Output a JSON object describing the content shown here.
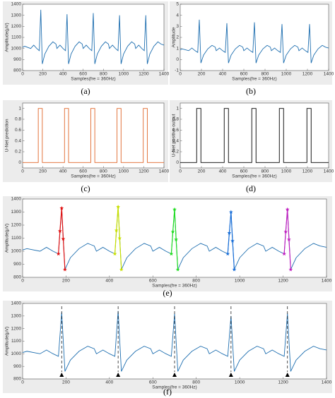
{
  "chart_data": [
    {
      "type": "line",
      "caption": "(a)",
      "xlabel": "Samples(fre = 360Hz)",
      "ylabel": "Amplitude(μV)",
      "xlim": [
        0,
        1400
      ],
      "xticks": [
        0,
        200,
        400,
        600,
        800,
        1000,
        1200,
        1400
      ],
      "ylim": [
        800,
        1400
      ],
      "yticks": [
        800,
        900,
        1000,
        1100,
        1200,
        1300,
        1400
      ],
      "series": [
        {
          "color": "#1f6fb0",
          "x": [
            0,
            20,
            80,
            110,
            140,
            165,
            180,
            195,
            220,
            260,
            300,
            330,
            340,
            370,
            400,
            425,
            440,
            455,
            480,
            520,
            560,
            590,
            600,
            630,
            660,
            685,
            700,
            715,
            740,
            780,
            820,
            850,
            860,
            890,
            920,
            945,
            960,
            975,
            1000,
            1040,
            1080,
            1110,
            1120,
            1150,
            1180,
            1205,
            1220,
            1235,
            1260,
            1300,
            1340,
            1370,
            1400
          ],
          "values": [
            1010,
            1020,
            1000,
            1030,
            1000,
            980,
            1350,
            860,
            950,
            1020,
            1060,
            1040,
            1000,
            1030,
            1000,
            980,
            1310,
            860,
            950,
            1020,
            1060,
            1040,
            1000,
            1030,
            1000,
            980,
            1320,
            860,
            950,
            1020,
            1060,
            1040,
            1000,
            1030,
            1000,
            980,
            1300,
            860,
            950,
            1020,
            1060,
            1040,
            1000,
            1030,
            1000,
            980,
            1300,
            860,
            950,
            1020,
            1060,
            1040,
            1030
          ]
        }
      ]
    },
    {
      "type": "line",
      "caption": "(b)",
      "xlabel": "Samples(fre = 360Hz)",
      "ylabel": "Amplitude",
      "xlim": [
        0,
        1400
      ],
      "xticks": [
        0,
        200,
        400,
        600,
        800,
        1000,
        1200,
        1400
      ],
      "ylim": [
        -1,
        5
      ],
      "yticks": [
        -1,
        0,
        1,
        2,
        3,
        4,
        5
      ],
      "series": [
        {
          "color": "#1f6fb0",
          "x": [
            0,
            20,
            80,
            110,
            140,
            165,
            180,
            195,
            220,
            260,
            300,
            330,
            340,
            370,
            400,
            425,
            440,
            455,
            480,
            520,
            560,
            590,
            600,
            630,
            660,
            685,
            700,
            715,
            740,
            780,
            820,
            850,
            860,
            890,
            920,
            945,
            960,
            975,
            1000,
            1040,
            1080,
            1110,
            1120,
            1150,
            1180,
            1205,
            1220,
            1235,
            1260,
            1300,
            1340,
            1370,
            1400
          ],
          "values": [
            0.88,
            0.96,
            0.8,
            1.04,
            0.8,
            0.64,
            3.6,
            -0.32,
            0.4,
            0.96,
            1.28,
            1.12,
            0.8,
            1.04,
            0.8,
            0.64,
            3.28,
            -0.32,
            0.4,
            0.96,
            1.28,
            1.12,
            0.8,
            1.04,
            0.8,
            0.64,
            3.36,
            -0.32,
            0.4,
            0.96,
            1.28,
            1.12,
            0.8,
            1.04,
            0.8,
            0.64,
            3.2,
            -0.32,
            0.4,
            0.96,
            1.28,
            1.12,
            0.8,
            1.04,
            0.8,
            0.64,
            3.2,
            -0.32,
            0.4,
            0.96,
            1.28,
            1.12,
            1.04
          ]
        }
      ]
    },
    {
      "type": "line",
      "caption": "(c)",
      "xlabel": "Samples(fre = 360Hz)",
      "ylabel": "U-Net prediction",
      "xlim": [
        0,
        1400
      ],
      "xticks": [
        0,
        200,
        400,
        600,
        800,
        1000,
        1200,
        1400
      ],
      "ylim": [
        -0.1,
        1.1
      ],
      "yticks": [
        0,
        0.2,
        0.4,
        0.6,
        0.8,
        1
      ],
      "series": [
        {
          "color": "#e0662a",
          "x": [
            0,
            155,
            155,
            195,
            195,
            415,
            415,
            455,
            455,
            675,
            675,
            715,
            715,
            935,
            935,
            975,
            975,
            1195,
            1195,
            1235,
            1235,
            1400
          ],
          "values": [
            0,
            0,
            1,
            1,
            0,
            0,
            1,
            1,
            0,
            0,
            1,
            1,
            0,
            0,
            1,
            1,
            0,
            0,
            1,
            1,
            0,
            0
          ]
        }
      ]
    },
    {
      "type": "line",
      "caption": "(d)",
      "xlabel": "Samples(fre = 360Hz)",
      "ylabel": "U-Net positive output",
      "xlim": [
        0,
        1400
      ],
      "xticks": [
        0,
        200,
        400,
        600,
        800,
        1000,
        1200,
        1400
      ],
      "ylim": [
        -0.1,
        1.1
      ],
      "yticks": [
        0,
        0.2,
        0.4,
        0.6,
        0.8,
        1
      ],
      "series": [
        {
          "color": "#000000",
          "x": [
            0,
            155,
            155,
            195,
            195,
            415,
            415,
            455,
            455,
            675,
            675,
            715,
            715,
            935,
            935,
            975,
            975,
            1195,
            1195,
            1235,
            1235,
            1400
          ],
          "values": [
            0,
            0,
            1,
            1,
            0,
            0,
            1,
            1,
            0,
            0,
            1,
            1,
            0,
            0,
            1,
            1,
            0,
            0,
            1,
            1,
            0,
            0
          ]
        }
      ]
    },
    {
      "type": "line",
      "caption": "(e)",
      "xlabel": "Samples(fre = 360Hz)",
      "ylabel": "Amplitude(μV)",
      "xlim": [
        0,
        1400
      ],
      "xticks": [
        0,
        200,
        400,
        600,
        800,
        1000,
        1200,
        1400
      ],
      "ylim": [
        800,
        1400
      ],
      "yticks": [
        800,
        900,
        1000,
        1100,
        1200,
        1300,
        1400
      ],
      "series": [
        {
          "color": "#1f6fb0",
          "x": [
            0,
            20,
            80,
            110,
            140,
            165,
            180,
            195,
            220,
            260,
            300,
            330,
            340,
            370,
            400,
            425,
            440,
            455,
            480,
            520,
            560,
            590,
            600,
            630,
            660,
            685,
            700,
            715,
            740,
            780,
            820,
            850,
            860,
            890,
            920,
            945,
            960,
            975,
            1000,
            1040,
            1080,
            1110,
            1120,
            1150,
            1180,
            1205,
            1220,
            1235,
            1260,
            1300,
            1340,
            1370,
            1400
          ],
          "values": [
            1010,
            1020,
            1000,
            1030,
            1000,
            980,
            1330,
            860,
            950,
            1020,
            1060,
            1040,
            1000,
            1030,
            1000,
            980,
            1340,
            860,
            950,
            1020,
            1060,
            1040,
            1000,
            1030,
            1000,
            980,
            1320,
            860,
            950,
            1020,
            1060,
            1040,
            1000,
            1030,
            1000,
            980,
            1300,
            860,
            950,
            1020,
            1060,
            1040,
            1000,
            1030,
            1000,
            980,
            1320,
            860,
            950,
            1020,
            1060,
            1040,
            1030
          ]
        },
        {
          "color": "#e01010",
          "marker": "star",
          "x": [
            165,
            172,
            180,
            187,
            195
          ],
          "values": [
            980,
            1155,
            1330,
            1095,
            860
          ]
        },
        {
          "color": "#c8e000",
          "marker": "star",
          "x": [
            425,
            432,
            440,
            447,
            455
          ],
          "values": [
            980,
            1160,
            1340,
            1100,
            860
          ]
        },
        {
          "color": "#22dd22",
          "marker": "star",
          "x": [
            685,
            692,
            700,
            707,
            715
          ],
          "values": [
            980,
            1150,
            1320,
            1090,
            860
          ]
        },
        {
          "color": "#1a6fd8",
          "marker": "star",
          "x": [
            945,
            952,
            960,
            967,
            975
          ],
          "values": [
            980,
            1140,
            1300,
            1080,
            860
          ]
        },
        {
          "color": "#c020c0",
          "marker": "star",
          "x": [
            1205,
            1212,
            1220,
            1227,
            1235
          ],
          "values": [
            980,
            1150,
            1320,
            1090,
            860
          ]
        }
      ]
    },
    {
      "type": "line",
      "caption": "(f)",
      "xlabel": "Samples(fre = 360Hz)",
      "ylabel": "Amplitude(μV)",
      "xlim": [
        0,
        1400
      ],
      "xticks": [
        0,
        200,
        400,
        600,
        800,
        1000,
        1200,
        1400
      ],
      "ylim": [
        800,
        1400
      ],
      "yticks": [
        800,
        900,
        1000,
        1100,
        1200,
        1300,
        1400
      ],
      "peak_markers_x": [
        180,
        440,
        700,
        960,
        1220
      ],
      "series": [
        {
          "color": "#1f6fb0",
          "x": [
            0,
            20,
            80,
            110,
            140,
            165,
            180,
            195,
            220,
            260,
            300,
            330,
            340,
            370,
            400,
            425,
            440,
            455,
            480,
            520,
            560,
            590,
            600,
            630,
            660,
            685,
            700,
            715,
            740,
            780,
            820,
            850,
            860,
            890,
            920,
            945,
            960,
            975,
            1000,
            1040,
            1080,
            1110,
            1120,
            1150,
            1180,
            1205,
            1220,
            1235,
            1260,
            1300,
            1340,
            1370,
            1400
          ],
          "values": [
            1010,
            1020,
            1000,
            1030,
            1000,
            980,
            1330,
            860,
            950,
            1020,
            1060,
            1040,
            1000,
            1030,
            1000,
            980,
            1340,
            860,
            950,
            1020,
            1060,
            1040,
            1000,
            1030,
            1000,
            980,
            1320,
            860,
            950,
            1020,
            1060,
            1040,
            1000,
            1030,
            1000,
            980,
            1300,
            860,
            950,
            1020,
            1060,
            1040,
            1000,
            1030,
            1000,
            980,
            1320,
            860,
            950,
            1020,
            1060,
            1040,
            1030
          ]
        }
      ]
    }
  ]
}
